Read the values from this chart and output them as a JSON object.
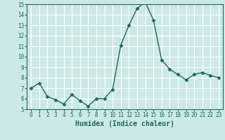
{
  "x": [
    0,
    1,
    2,
    3,
    4,
    5,
    6,
    7,
    8,
    9,
    10,
    11,
    12,
    13,
    14,
    15,
    16,
    17,
    18,
    19,
    20,
    21,
    22,
    23
  ],
  "y": [
    7.0,
    7.5,
    6.2,
    5.9,
    5.5,
    6.4,
    5.8,
    5.3,
    6.0,
    6.0,
    6.9,
    11.1,
    13.0,
    14.6,
    15.2,
    13.5,
    9.7,
    8.8,
    8.3,
    7.8,
    8.3,
    8.5,
    8.2,
    8.0
  ],
  "xlabel": "Humidex (Indice chaleur)",
  "ylim": [
    5,
    15
  ],
  "xlim": [
    -0.5,
    23.5
  ],
  "yticks": [
    5,
    6,
    7,
    8,
    9,
    10,
    11,
    12,
    13,
    14,
    15
  ],
  "xticks": [
    0,
    1,
    2,
    3,
    4,
    5,
    6,
    7,
    8,
    9,
    10,
    11,
    12,
    13,
    14,
    15,
    16,
    17,
    18,
    19,
    20,
    21,
    22,
    23
  ],
  "line_color": "#1a6b5a",
  "marker": "D",
  "marker_size": 2.5,
  "bg_color": "#cce8e8",
  "grid_color": "#ffffff",
  "tick_fontsize": 5.5,
  "xlabel_fontsize": 7.0,
  "linewidth": 1.0
}
